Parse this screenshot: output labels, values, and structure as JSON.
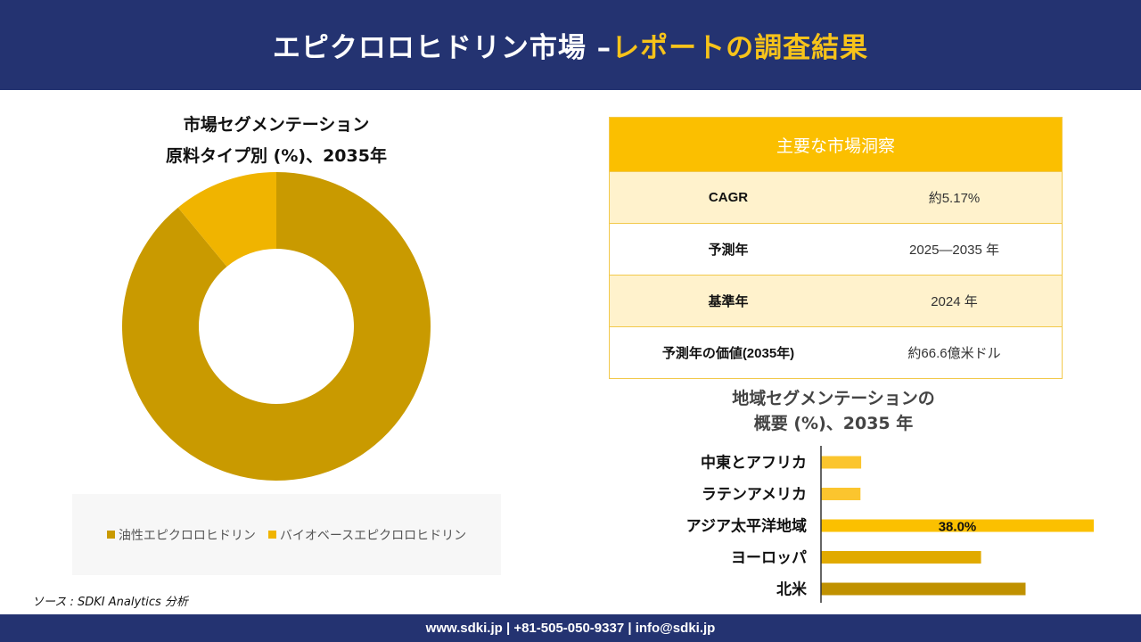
{
  "header": {
    "title_main": "エピクロロヒドリン市場 –",
    "title_accent": "レポートの調査結果"
  },
  "donut": {
    "title_line1": "市場セグメンテーション",
    "title_line2": "原料タイプ別 (%)、2035年"
  },
  "insights": {
    "header": "主要な市場洞察",
    "rows": [
      {
        "key": "CAGR",
        "value": "約5.17%"
      },
      {
        "key": "予測年",
        "value": "2025—2035 年"
      },
      {
        "key": "基準年",
        "value": "2024 年"
      },
      {
        "key": "予測年の価値(2035年)",
        "value": "約66.6億米ドル"
      }
    ]
  },
  "region": {
    "title_line1": "地域セグメンテーションの",
    "title_line2": "概要 (%)、2035 年"
  },
  "source": "ソース : SDKI Analytics 分析",
  "footer": "www.sdki.jp | +81-505-050-9337 | info@sdki.jp",
  "chart_data": [
    {
      "type": "pie",
      "categories": [
        "油性エピクロロヒドリン",
        "バイオベースエピクロロヒドリン"
      ],
      "values": [
        89,
        11
      ],
      "colors": [
        "#c99a00",
        "#f0b400"
      ],
      "legend_position": "bottom"
    },
    {
      "type": "bar",
      "orientation": "horizontal",
      "categories": [
        "中東とアフリカ",
        "ラテンアメリカ",
        "アジア太平洋地域",
        "ヨーロッパ",
        "北米"
      ],
      "values": [
        5.6,
        5.5,
        38.0,
        22.3,
        28.5
      ],
      "labels": [
        "",
        "",
        "38.0%",
        "",
        ""
      ],
      "colors": [
        "#fbc52e",
        "#fbc52e",
        "#fbc000",
        "#e1aa00",
        "#c09100"
      ],
      "xlim": [
        0,
        40
      ]
    }
  ]
}
